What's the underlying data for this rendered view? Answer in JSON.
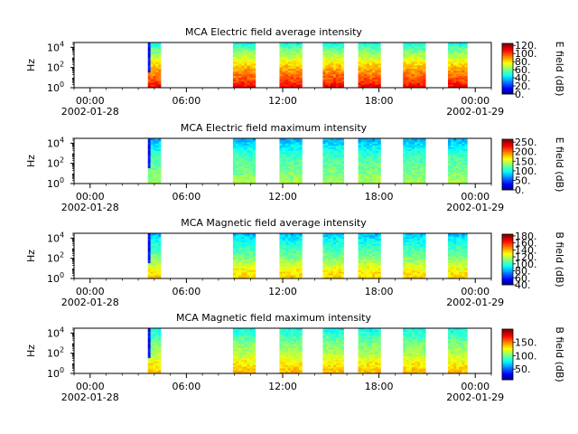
{
  "chart_data": [
    {
      "type": "heatmap",
      "title": "MCA  Electric field average intensity",
      "ylabel": "Hz",
      "ylim": [
        1,
        30000
      ],
      "y_scale": "log",
      "y_ticks": [
        {
          "base": "10",
          "exp": "0"
        },
        {
          "base": "10",
          "exp": "2"
        },
        {
          "base": "10",
          "exp": "4"
        }
      ],
      "x_ticks": [
        {
          "time": "00:00",
          "date": "2002-01-28"
        },
        {
          "time": "06:00",
          "date": ""
        },
        {
          "time": "12:00",
          "date": ""
        },
        {
          "time": "18:00",
          "date": ""
        },
        {
          "time": "00:00",
          "date": "2002-01-29"
        }
      ],
      "x_range_hours": [
        -1,
        25
      ],
      "colorbar_label": "E field (dB)",
      "colorbar_range": [
        0,
        125
      ],
      "colorbar_ticks": [
        "0.",
        "20.",
        "40.",
        "60.",
        "80.",
        "100.",
        "120."
      ],
      "colormap": "jet",
      "data_segments_hours": [
        [
          3.6,
          4.4
        ],
        [
          8.9,
          10.3
        ],
        [
          11.8,
          13.2
        ],
        [
          14.5,
          15.8
        ],
        [
          16.7,
          18.1
        ],
        [
          19.5,
          20.9
        ],
        [
          22.3,
          23.5
        ]
      ],
      "profile": [
        {
          "hz": 1,
          "level": 0.9
        },
        {
          "hz": 10,
          "level": 0.78
        },
        {
          "hz": 100,
          "level": 0.7
        },
        {
          "hz": 1000,
          "level": 0.58
        },
        {
          "hz": 10000,
          "level": 0.45
        },
        {
          "hz": 30000,
          "level": 0.38
        }
      ]
    },
    {
      "type": "heatmap",
      "title": "MCA  Electric field maximum intensity",
      "ylabel": "Hz",
      "ylim": [
        1,
        30000
      ],
      "y_scale": "log",
      "y_ticks": [
        {
          "base": "10",
          "exp": "0"
        },
        {
          "base": "10",
          "exp": "2"
        },
        {
          "base": "10",
          "exp": "4"
        }
      ],
      "x_ticks": [
        {
          "time": "00:00",
          "date": "2002-01-28"
        },
        {
          "time": "06:00",
          "date": ""
        },
        {
          "time": "12:00",
          "date": ""
        },
        {
          "time": "18:00",
          "date": ""
        },
        {
          "time": "00:00",
          "date": "2002-01-29"
        }
      ],
      "x_range_hours": [
        -1,
        25
      ],
      "colorbar_label": "E field (dB)",
      "colorbar_range": [
        0,
        265
      ],
      "colorbar_ticks": [
        "0.",
        "50.",
        "100.",
        "150.",
        "200.",
        "250."
      ],
      "colormap": "jet",
      "data_segments_hours": [
        [
          3.6,
          4.4
        ],
        [
          8.9,
          10.3
        ],
        [
          11.8,
          13.2
        ],
        [
          14.5,
          15.8
        ],
        [
          16.7,
          18.1
        ],
        [
          19.5,
          20.9
        ],
        [
          22.3,
          23.5
        ]
      ],
      "profile": [
        {
          "hz": 1,
          "level": 0.55
        },
        {
          "hz": 10,
          "level": 0.5
        },
        {
          "hz": 100,
          "level": 0.47
        },
        {
          "hz": 1000,
          "level": 0.42
        },
        {
          "hz": 10000,
          "level": 0.34
        },
        {
          "hz": 30000,
          "level": 0.28
        }
      ]
    },
    {
      "type": "heatmap",
      "title": "MCA  Magnetic field average intensity",
      "ylabel": "Hz",
      "ylim": [
        1,
        30000
      ],
      "y_scale": "log",
      "y_ticks": [
        {
          "base": "10",
          "exp": "0"
        },
        {
          "base": "10",
          "exp": "2"
        },
        {
          "base": "10",
          "exp": "4"
        }
      ],
      "x_ticks": [
        {
          "time": "00:00",
          "date": "2002-01-28"
        },
        {
          "time": "06:00",
          "date": ""
        },
        {
          "time": "12:00",
          "date": ""
        },
        {
          "time": "18:00",
          "date": ""
        },
        {
          "time": "00:00",
          "date": "2002-01-29"
        }
      ],
      "x_range_hours": [
        -1,
        25
      ],
      "colorbar_label": "B field (dB)",
      "colorbar_range": [
        40,
        185
      ],
      "colorbar_ticks": [
        "40.",
        "60.",
        "80.",
        "100.",
        "120.",
        "140.",
        "160.",
        "180."
      ],
      "colormap": "jet",
      "data_segments_hours": [
        [
          3.6,
          4.4
        ],
        [
          8.9,
          10.3
        ],
        [
          11.8,
          13.2
        ],
        [
          14.5,
          15.8
        ],
        [
          16.7,
          18.1
        ],
        [
          19.5,
          20.9
        ],
        [
          22.3,
          23.5
        ]
      ],
      "profile": [
        {
          "hz": 1,
          "level": 0.68
        },
        {
          "hz": 10,
          "level": 0.62
        },
        {
          "hz": 100,
          "level": 0.5
        },
        {
          "hz": 1000,
          "level": 0.44
        },
        {
          "hz": 10000,
          "level": 0.36
        },
        {
          "hz": 30000,
          "level": 0.3
        }
      ]
    },
    {
      "type": "heatmap",
      "title": "MCA  Magnetic field maximum intensity",
      "ylabel": "Hz",
      "ylim": [
        1,
        30000
      ],
      "y_scale": "log",
      "y_ticks": [
        {
          "base": "10",
          "exp": "0"
        },
        {
          "base": "10",
          "exp": "2"
        },
        {
          "base": "10",
          "exp": "4"
        }
      ],
      "x_ticks": [
        {
          "time": "00:00",
          "date": "2002-01-28"
        },
        {
          "time": "06:00",
          "date": ""
        },
        {
          "time": "12:00",
          "date": ""
        },
        {
          "time": "18:00",
          "date": ""
        },
        {
          "time": "00:00",
          "date": "2002-01-29"
        }
      ],
      "x_range_hours": [
        -1,
        25
      ],
      "colorbar_label": "B field (dB)",
      "colorbar_range": [
        10,
        200
      ],
      "colorbar_ticks": [
        "50.",
        "100.",
        "150."
      ],
      "colormap": "jet",
      "data_segments_hours": [
        [
          3.6,
          4.4
        ],
        [
          8.9,
          10.3
        ],
        [
          11.8,
          13.2
        ],
        [
          14.5,
          15.8
        ],
        [
          16.7,
          18.1
        ],
        [
          19.5,
          20.9
        ],
        [
          22.3,
          23.5
        ]
      ],
      "profile": [
        {
          "hz": 1,
          "level": 0.7
        },
        {
          "hz": 10,
          "level": 0.64
        },
        {
          "hz": 100,
          "level": 0.55
        },
        {
          "hz": 1000,
          "level": 0.5
        },
        {
          "hz": 10000,
          "level": 0.42
        },
        {
          "hz": 30000,
          "level": 0.38
        }
      ]
    }
  ]
}
